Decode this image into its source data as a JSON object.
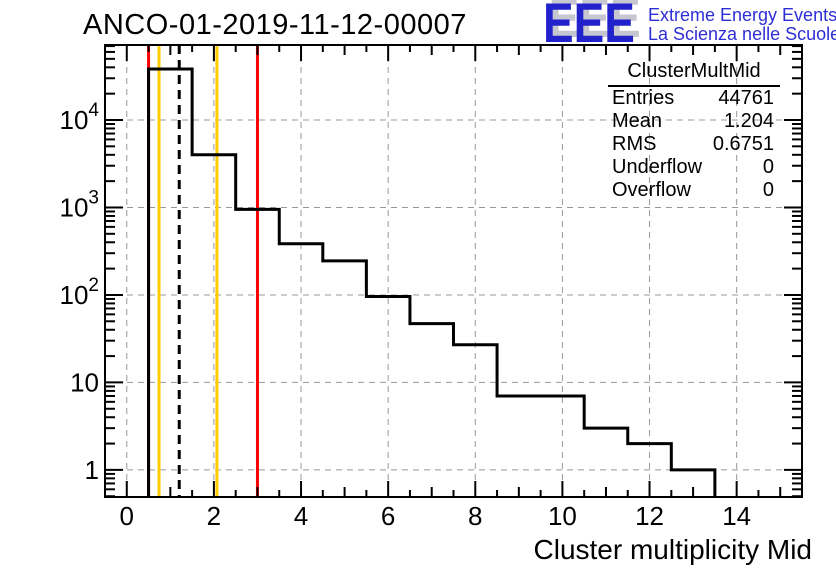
{
  "header": {
    "title": "ANCO-01-2019-11-12-00007",
    "logo": {
      "acronym": "EEE",
      "line1": "Extreme Energy Events",
      "line2": "La Scienza nelle Scuole",
      "acronym_color": "#2222cc",
      "text_color": "#2e2ed6",
      "shadow_color": "#c6c6d0"
    }
  },
  "stats_box": {
    "title": "ClusterMultMid",
    "rows": [
      {
        "label": "Entries",
        "value": "44761"
      },
      {
        "label": "Mean",
        "value": "1.204"
      },
      {
        "label": "RMS",
        "value": "0.6751"
      },
      {
        "label": "Underflow",
        "value": "0"
      },
      {
        "label": "Overflow",
        "value": "0"
      }
    ]
  },
  "chart_data": {
    "type": "bar",
    "subtype": "step-histogram",
    "title": "ANCO-01-2019-11-12-00007",
    "xlabel": "Cluster multiplicity Mid",
    "ylabel": "",
    "y_scale": "log",
    "grid": true,
    "x_range": [
      -0.5,
      15.5
    ],
    "y_range": [
      0.49,
      72000
    ],
    "bin_width": 1,
    "bin_centers": [
      0,
      1,
      2,
      3,
      4,
      5,
      6,
      7,
      8,
      9,
      10,
      11,
      12,
      13,
      14,
      15
    ],
    "values": [
      0,
      38300,
      4000,
      950,
      385,
      245,
      96,
      47,
      27,
      7,
      7,
      3,
      2,
      1,
      0,
      0
    ],
    "x_ticks": [
      0,
      2,
      4,
      6,
      8,
      10,
      12,
      14
    ],
    "x_tick_labels": [
      "0",
      "2",
      "4",
      "6",
      "8",
      "10",
      "12",
      "14"
    ],
    "y_ticks": [
      {
        "value": 1,
        "base": "1",
        "exp": ""
      },
      {
        "value": 10,
        "base": "10",
        "exp": ""
      },
      {
        "value": 100,
        "base": "10",
        "exp": "2"
      },
      {
        "value": 1000,
        "base": "10",
        "exp": "3"
      },
      {
        "value": 10000,
        "base": "10",
        "exp": "4"
      }
    ],
    "marker_lines": [
      {
        "name": "limit-low",
        "x": 0.5,
        "color": "#ff0000",
        "style": "solid"
      },
      {
        "name": "warn-low",
        "x": 0.74,
        "color": "#ffcc00",
        "style": "solid"
      },
      {
        "name": "mean",
        "x": 1.204,
        "color": "#000000",
        "style": "dashed"
      },
      {
        "name": "warn-high",
        "x": 2.07,
        "color": "#ffcc00",
        "style": "solid"
      },
      {
        "name": "limit-high",
        "x": 3.0,
        "color": "#ff0000",
        "style": "solid"
      }
    ],
    "histogram_color": "#000000",
    "grid_color": "#999999",
    "frame_color": "#000000"
  }
}
